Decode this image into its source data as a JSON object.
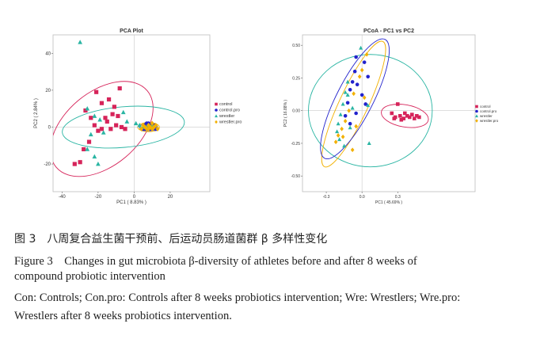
{
  "chart_data": [
    {
      "type": "scatter",
      "title": "PCA Plot",
      "xlabel": "PC1 ( 8.83% )",
      "ylabel": "PC2 ( 2.84% )",
      "xlim": [
        -45,
        42
      ],
      "ylim": [
        -35,
        50
      ],
      "xticks": [
        -40,
        -20,
        0,
        20
      ],
      "yticks": [
        -20,
        0,
        20,
        40
      ],
      "grid": false,
      "legend_position": "right",
      "legend": [
        "control",
        "control.pro",
        "wrestler",
        "wrestler.pro"
      ],
      "series": [
        {
          "name": "control",
          "color": "#d6245a",
          "marker": "square",
          "points": [
            [
              -21,
              19
            ],
            [
              -8,
              21
            ],
            [
              -18,
              13
            ],
            [
              -14,
              15
            ],
            [
              -11,
              11
            ],
            [
              -12,
              7
            ],
            [
              -9,
              6
            ],
            [
              -16,
              5
            ],
            [
              -24,
              5
            ],
            [
              -27,
              9
            ],
            [
              -22,
              1
            ],
            [
              -18,
              -1
            ],
            [
              -13,
              -1
            ],
            [
              -10,
              1
            ],
            [
              -7,
              0
            ],
            [
              -5,
              -1
            ],
            [
              -25,
              -8
            ],
            [
              -28,
              -12
            ],
            [
              -33,
              -20
            ],
            [
              -30,
              -19
            ],
            [
              -20,
              -2
            ],
            [
              -15,
              3
            ]
          ]
        },
        {
          "name": "control.pro",
          "color": "#2222cc",
          "marker": "circle",
          "points": [
            [
              6,
              1
            ],
            [
              8,
              0
            ],
            [
              9,
              -1
            ],
            [
              7,
              2
            ],
            [
              10,
              0
            ],
            [
              5,
              -1
            ],
            [
              11,
              1
            ],
            [
              12,
              -1
            ],
            [
              8,
              2
            ],
            [
              9,
              1
            ],
            [
              6,
              -1
            ]
          ]
        },
        {
          "name": "wrestler",
          "color": "#2ab5a3",
          "marker": "triangle",
          "points": [
            [
              -30,
              46
            ],
            [
              -26,
              10
            ],
            [
              -22,
              6
            ],
            [
              -19,
              4
            ],
            [
              -24,
              -4
            ],
            [
              -26,
              -12
            ],
            [
              -22,
              -16
            ],
            [
              -20,
              -20
            ],
            [
              -17,
              -3
            ],
            [
              -6,
              8
            ],
            [
              -4,
              3
            ],
            [
              3,
              1
            ],
            [
              5,
              0
            ],
            [
              1,
              2
            ],
            [
              7,
              0
            ],
            [
              10,
              1
            ]
          ]
        },
        {
          "name": "wrestler.pro",
          "color": "#f2b000",
          "marker": "diamond",
          "points": [
            [
              5,
              1
            ],
            [
              7,
              -1
            ],
            [
              8,
              1
            ],
            [
              9,
              0
            ],
            [
              10,
              -1
            ],
            [
              11,
              0
            ],
            [
              12,
              1
            ],
            [
              13,
              -1
            ],
            [
              6,
              0
            ],
            [
              4,
              -1
            ],
            [
              8,
              -1
            ],
            [
              10,
              2
            ]
          ]
        }
      ],
      "ellipses": [
        {
          "name": "control",
          "color": "#d6245a",
          "cx": -18,
          "cy": -1,
          "rx": 33,
          "ry": 20,
          "angle": 40
        },
        {
          "name": "wrestler",
          "color": "#2ab5a3",
          "cx": -6,
          "cy": 0,
          "rx": 34,
          "ry": 11,
          "angle": 5
        },
        {
          "name": "control.pro",
          "color": "#2222cc",
          "cx": 8,
          "cy": 0,
          "rx": 5,
          "ry": 2,
          "angle": 0
        },
        {
          "name": "wrestler.pro",
          "color": "#f2b000",
          "cx": 8,
          "cy": 0,
          "rx": 6,
          "ry": 2.5,
          "angle": 0
        }
      ]
    },
    {
      "type": "scatter",
      "title": "PCoA - PC1 vs PC2",
      "xlabel": "PC1 ( 45.69% )",
      "ylabel": "PC2 ( 16.88% )",
      "xlim": [
        -0.5,
        0.95
      ],
      "ylim": [
        -0.62,
        0.58
      ],
      "xticks": [
        -0.3,
        0.0,
        0.3
      ],
      "xtick_labels": [
        "-0.3",
        "0.0",
        "0.3"
      ],
      "yticks": [
        -0.5,
        -0.25,
        0.0,
        0.25,
        0.5
      ],
      "ytick_labels": [
        "-0.50",
        "-0.25",
        "0.00",
        "0.25",
        "0.50"
      ],
      "grid": false,
      "legend_position": "top-right",
      "legend": [
        "control",
        "control.pro",
        "wrestler",
        "wrestler.pro"
      ],
      "series": [
        {
          "name": "control",
          "color": "#d6245a",
          "marker": "square",
          "points": [
            [
              0.3,
              0.05
            ],
            [
              0.25,
              -0.02
            ],
            [
              0.28,
              -0.05
            ],
            [
              0.32,
              -0.04
            ],
            [
              0.35,
              -0.06
            ],
            [
              0.38,
              -0.04
            ],
            [
              0.4,
              -0.05
            ],
            [
              0.42,
              -0.03
            ],
            [
              0.44,
              -0.06
            ],
            [
              0.46,
              -0.04
            ],
            [
              0.33,
              -0.07
            ],
            [
              0.36,
              -0.02
            ],
            [
              0.48,
              -0.05
            ],
            [
              0.27,
              -0.06
            ]
          ]
        },
        {
          "name": "control.pro",
          "color": "#2222cc",
          "marker": "circle",
          "points": [
            [
              -0.05,
              0.41
            ],
            [
              0.02,
              0.37
            ],
            [
              -0.06,
              0.3
            ],
            [
              -0.08,
              0.22
            ],
            [
              -0.04,
              0.2
            ],
            [
              0.05,
              0.26
            ],
            [
              -0.1,
              0.16
            ],
            [
              0.0,
              0.12
            ],
            [
              -0.12,
              0.06
            ],
            [
              -0.14,
              -0.04
            ],
            [
              -0.1,
              -0.1
            ],
            [
              0.03,
              0.05
            ],
            [
              -0.05,
              -0.02
            ]
          ]
        },
        {
          "name": "wrestler",
          "color": "#2ab5a3",
          "marker": "triangle",
          "points": [
            [
              -0.01,
              0.48
            ],
            [
              -0.12,
              0.22
            ],
            [
              -0.14,
              0.14
            ],
            [
              -0.16,
              0.05
            ],
            [
              -0.18,
              -0.03
            ],
            [
              -0.2,
              -0.1
            ],
            [
              -0.21,
              -0.16
            ],
            [
              -0.19,
              -0.22
            ],
            [
              -0.15,
              -0.27
            ],
            [
              -0.12,
              0.12
            ],
            [
              -0.08,
              0.02
            ],
            [
              0.06,
              -0.25
            ],
            [
              0.05,
              0.04
            ],
            [
              -0.1,
              -0.13
            ]
          ]
        },
        {
          "name": "wrestler.pro",
          "color": "#f2b000",
          "marker": "diamond",
          "points": [
            [
              0.04,
              0.43
            ],
            [
              0.0,
              0.31
            ],
            [
              -0.02,
              0.26
            ],
            [
              -0.07,
              0.13
            ],
            [
              -0.11,
              0.0
            ],
            [
              -0.14,
              -0.08
            ],
            [
              -0.17,
              -0.14
            ],
            [
              -0.2,
              -0.19
            ],
            [
              -0.22,
              -0.24
            ],
            [
              -0.08,
              -0.3
            ],
            [
              -0.05,
              -0.12
            ],
            [
              -0.16,
              -0.2
            ],
            [
              0.02,
              0.1
            ]
          ]
        }
      ],
      "ellipses": [
        {
          "name": "wrestler",
          "color": "#2ab5a3",
          "cx": 0.07,
          "cy": 0.0,
          "rx": 0.52,
          "ry": 0.43,
          "angle": 0
        },
        {
          "name": "wrestler.pro",
          "color": "#f2b000",
          "cx": -0.07,
          "cy": 0.05,
          "rx": 0.58,
          "ry": 0.11,
          "angle": 65
        },
        {
          "name": "control.pro",
          "color": "#2222cc",
          "cx": -0.06,
          "cy": 0.09,
          "rx": 0.56,
          "ry": 0.14,
          "angle": 63
        },
        {
          "name": "control",
          "color": "#d6245a",
          "cx": 0.36,
          "cy": -0.04,
          "rx": 0.2,
          "ry": 0.085,
          "angle": -10
        }
      ]
    }
  ],
  "caption": {
    "cn": "图 3　八周复合益生菌干预前、后运动员肠道菌群 β 多样性变化",
    "en_line1": "Figure 3　Changes in gut microbiota β-diversity of athletes before and after 8 weeks of",
    "en_line2": "compound probiotic intervention",
    "en_line3": "Con: Controls; Con.pro: Controls after 8 weeks probiotics intervention; Wre: Wrestlers; Wre.pro:",
    "en_line4": "Wrestlers after 8 weeks probiotics intervention."
  }
}
